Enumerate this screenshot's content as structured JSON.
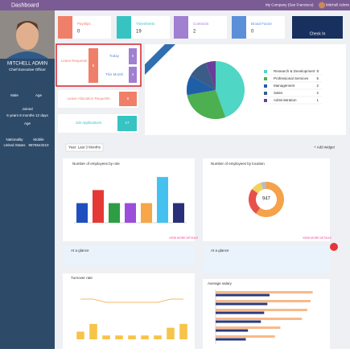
{
  "topbar": {
    "title": "Dashboard",
    "company": "My Company (San Francisco)",
    "user": "Mitchell Admin"
  },
  "profile": {
    "name": "MITCHELL ADMIN",
    "job": "Chief Executive Officer",
    "gender": "Male",
    "age_label": "Age",
    "joined_label": "Joined",
    "tenure": "6 years 8 months 12 days",
    "age_label2": "Age",
    "nationality_label": "Nationality",
    "mobile_label": "Mobile",
    "nationality": "United States",
    "mobile": "9876543210"
  },
  "cards": [
    {
      "label": "Payslips",
      "value": 0,
      "color": "#f07f6a"
    },
    {
      "label": "Timesheets",
      "value": 19,
      "color": "#36c3c2"
    },
    {
      "label": "Contracts",
      "value": 2,
      "color": "#a17fd1"
    },
    {
      "label": "Broad Factor",
      "value": 0,
      "color": "#5b8fd9"
    }
  ],
  "check_in": "Check In",
  "leave": {
    "title": "Leave Requests",
    "total": 5,
    "today_label": "Today",
    "today": 0,
    "month_label": "This Month",
    "month": 4
  },
  "allocation": {
    "title": "Leave Allocation Requests",
    "value": 5
  },
  "jobs": {
    "title": "Job Applications",
    "value": 17
  },
  "filter": "Year: Last 3 Months",
  "add_widget": "+ Add widget",
  "glance": [
    "At a glance",
    "At a glance"
  ],
  "view_more": "VIEW MORE DETAILS",
  "chart_data": [
    {
      "type": "pie",
      "categories": [
        "Research & Development",
        "Professional Services",
        "Management",
        "Sales",
        "Administration"
      ],
      "values": [
        8,
        5,
        2,
        2,
        1
      ],
      "colors": [
        "#4fd6c4",
        "#4caf50",
        "#1f5fa8",
        "#3a5c86",
        "#6a3d9a"
      ]
    },
    {
      "type": "bar",
      "title": "Number of employees by role",
      "categories": [
        null,
        null,
        null,
        null,
        null,
        null,
        null
      ],
      "values": [
        3,
        5,
        3,
        3,
        3,
        7,
        3
      ],
      "colors": [
        "#1f4fbf",
        "#e53935",
        "#2e9e44",
        "#9c4ddb",
        "#f7a64a",
        "#45c1f0",
        "#2a2f7a"
      ],
      "ylim": [
        0,
        8
      ]
    },
    {
      "type": "donut",
      "title": "Number of employees by location",
      "center": "947",
      "values": [
        60,
        25,
        10,
        5
      ],
      "colors": [
        "#f5a24a",
        "#e8504a",
        "#f2d35a",
        "#bbbbbb"
      ]
    },
    {
      "type": "combo",
      "title": "Turnover rate",
      "series": [
        {
          "kind": "line",
          "color": "#f5a23a",
          "values": [
            1,
            1,
            0.8,
            0.8,
            0.8,
            0.8,
            0.8,
            1,
            1
          ]
        },
        {
          "kind": "bar",
          "axis": "y2",
          "color": "#f7c44a",
          "values": [
            2,
            4,
            1,
            1,
            1,
            1,
            1,
            3,
            4
          ]
        }
      ],
      "ylim": [
        0,
        1.5
      ],
      "y2lim": [
        0,
        5
      ]
    },
    {
      "type": "hbar",
      "title": "Average salary",
      "categories": [
        null,
        null,
        null,
        null,
        null,
        null
      ],
      "series": [
        {
          "color": "#f8b98a",
          "values": [
            90,
            88,
            85,
            80,
            60,
            55
          ]
        },
        {
          "color": "#2a3a7a",
          "values": [
            50,
            48,
            45,
            42,
            30,
            28
          ]
        }
      ],
      "xlim": [
        0,
        100
      ]
    }
  ]
}
